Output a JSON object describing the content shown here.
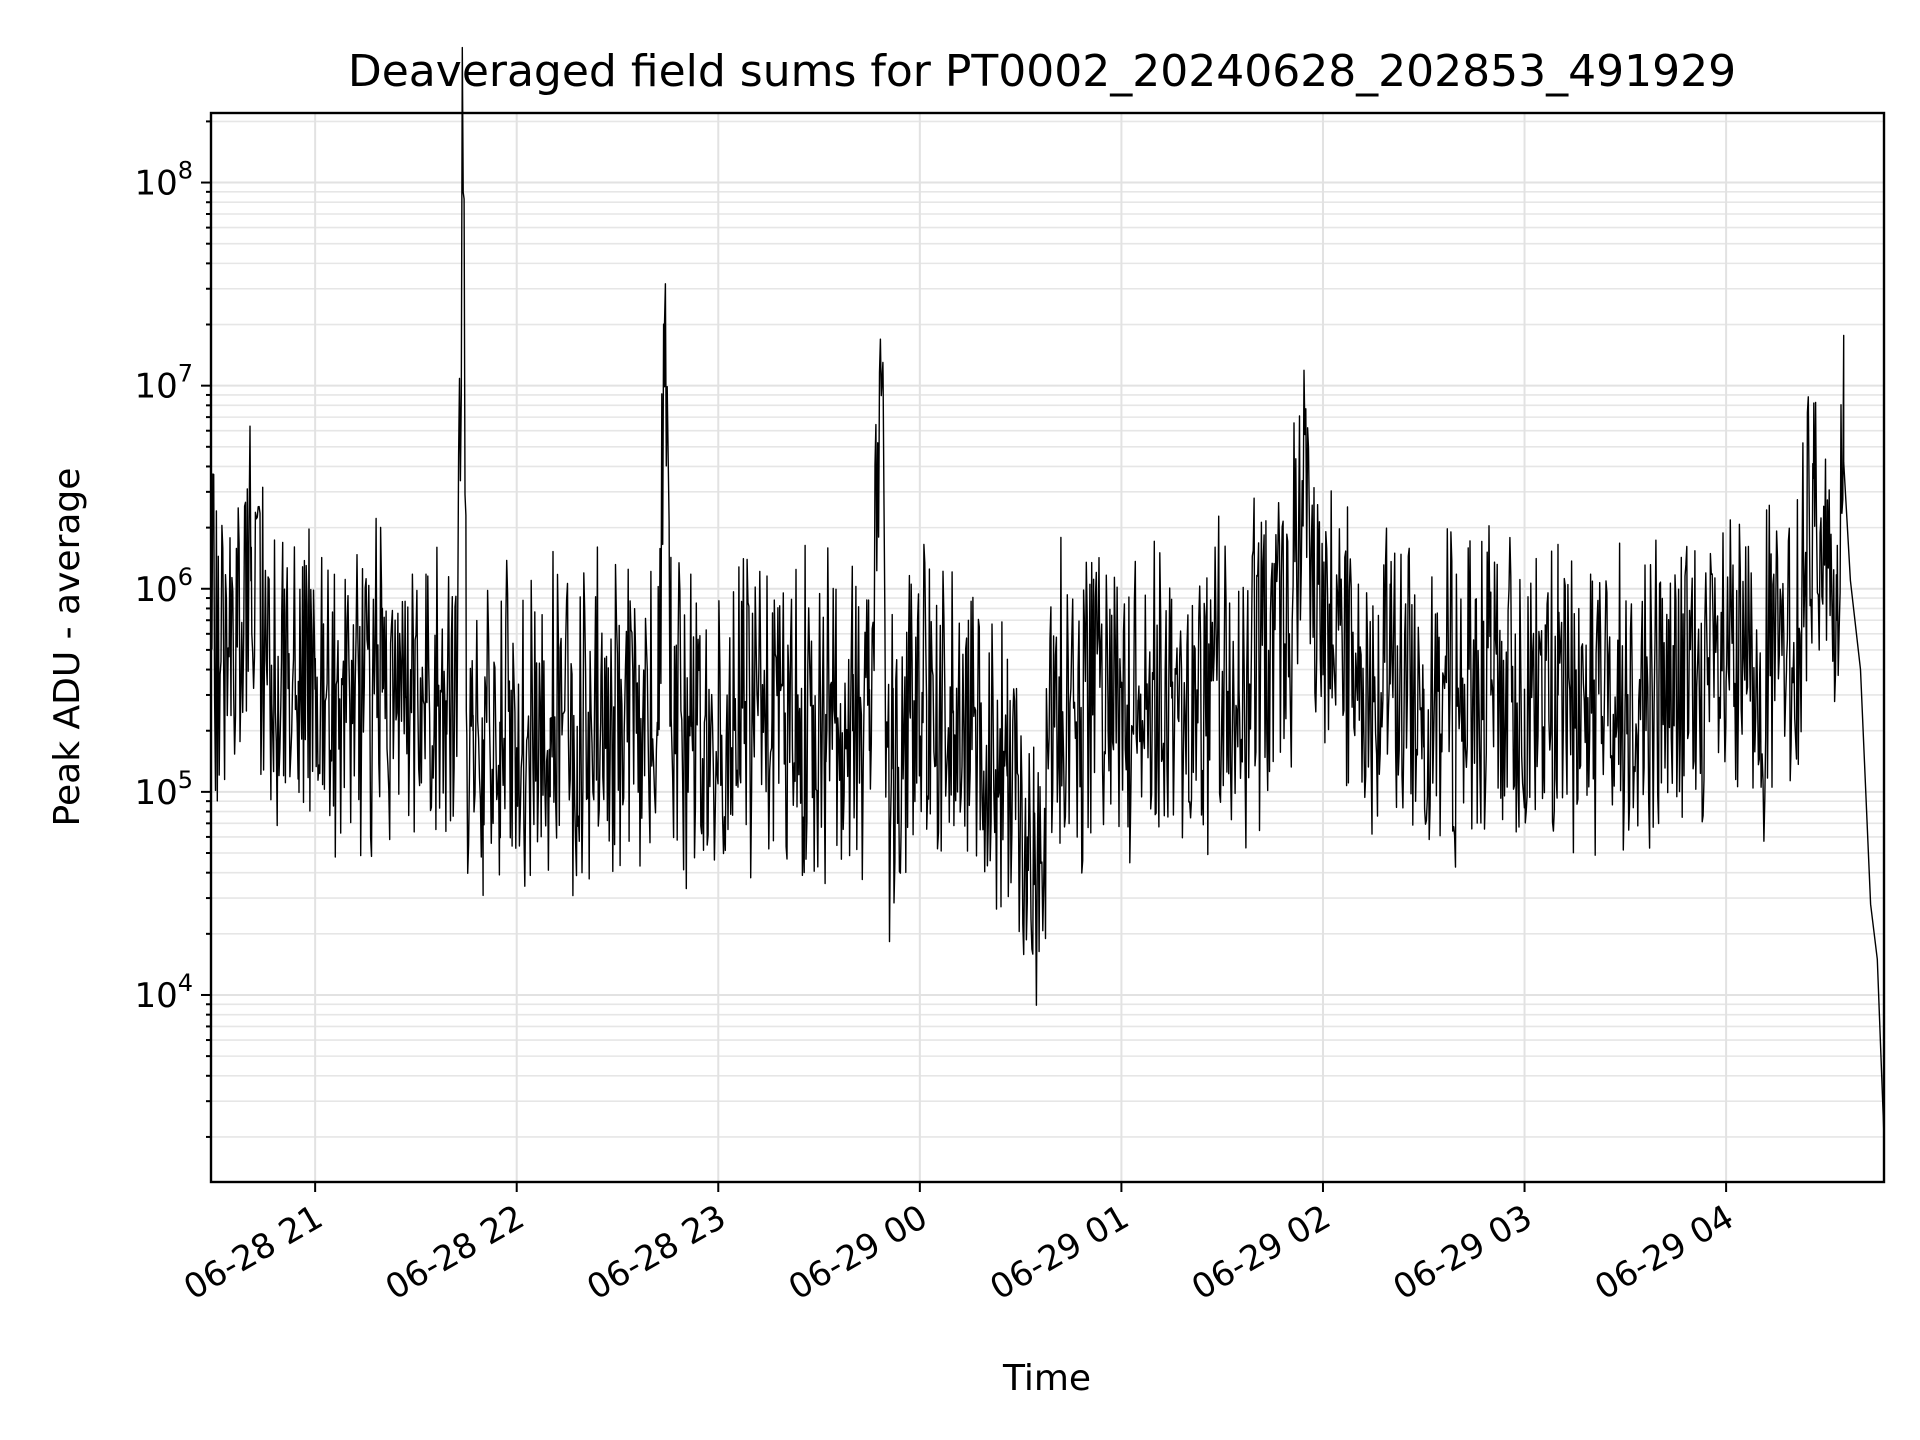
{
  "chart_data": {
    "type": "line",
    "title": "Deaveraged field sums for PT0002_20240628_202853_491929",
    "xlabel": "Time",
    "ylabel": "Peak ADU - average",
    "y_scale": "log",
    "ylim": [
      1200,
      220000000
    ],
    "xlim": [
      "2024-06-28T20:29",
      "2024-06-29T04:47"
    ],
    "grid": true,
    "line_color": "#000000",
    "x_ticks": [
      {
        "value": "2024-06-28T21:00",
        "label": "06-28 21"
      },
      {
        "value": "2024-06-28T22:00",
        "label": "06-28 22"
      },
      {
        "value": "2024-06-28T23:00",
        "label": "06-28 23"
      },
      {
        "value": "2024-06-29T00:00",
        "label": "06-29 00"
      },
      {
        "value": "2024-06-29T01:00",
        "label": "06-29 01"
      },
      {
        "value": "2024-06-29T02:00",
        "label": "06-29 02"
      },
      {
        "value": "2024-06-29T03:00",
        "label": "06-29 03"
      },
      {
        "value": "2024-06-29T04:00",
        "label": "06-29 04"
      }
    ],
    "y_ticks": [
      {
        "value": 10000,
        "base": "10",
        "exp": "4"
      },
      {
        "value": 100000,
        "base": "10",
        "exp": "5"
      },
      {
        "value": 1000000,
        "base": "10",
        "exp": "6"
      },
      {
        "value": 10000000,
        "base": "10",
        "exp": "7"
      },
      {
        "value": 100000000,
        "base": "10",
        "exp": "8"
      }
    ],
    "series": [
      {
        "x": [
          "2024-06-28T20:29",
          "2024-06-28T20:35",
          "2024-06-28T20:41",
          "2024-06-28T20:47",
          "2024-06-28T20:50",
          "2024-06-28T20:52",
          "2024-06-28T20:55",
          "2024-06-28T21:00",
          "2024-06-28T21:05",
          "2024-06-28T21:13",
          "2024-06-28T21:20",
          "2024-06-28T21:27",
          "2024-06-28T21:33",
          "2024-06-28T21:39",
          "2024-06-28T21:42",
          "2024-06-28T21:44",
          "2024-06-28T21:45",
          "2024-06-28T21:47",
          "2024-06-28T21:50",
          "2024-06-28T21:55",
          "2024-06-28T22:02",
          "2024-06-28T22:10",
          "2024-06-28T22:18",
          "2024-06-28T22:25",
          "2024-06-28T22:32",
          "2024-06-28T22:38",
          "2024-06-28T22:42",
          "2024-06-28T22:44",
          "2024-06-28T22:46",
          "2024-06-28T22:52",
          "2024-06-28T23:00",
          "2024-06-28T23:08",
          "2024-06-28T23:16",
          "2024-06-28T23:24",
          "2024-06-28T23:32",
          "2024-06-28T23:40",
          "2024-06-28T23:45",
          "2024-06-28T23:49",
          "2024-06-28T23:50",
          "2024-06-28T23:52",
          "2024-06-28T23:57",
          "2024-06-29T00:02",
          "2024-06-29T00:10",
          "2024-06-29T00:18",
          "2024-06-29T00:26",
          "2024-06-29T00:32",
          "2024-06-29T00:34",
          "2024-06-29T00:40",
          "2024-06-29T00:48",
          "2024-06-29T00:56",
          "2024-06-29T01:05",
          "2024-06-29T01:15",
          "2024-06-29T01:25",
          "2024-06-29T01:35",
          "2024-06-29T01:43",
          "2024-06-29T01:50",
          "2024-06-29T01:54",
          "2024-06-29T02:00",
          "2024-06-29T02:10",
          "2024-06-29T02:20",
          "2024-06-29T02:30",
          "2024-06-29T02:40",
          "2024-06-29T02:50",
          "2024-06-29T03:00",
          "2024-06-29T03:10",
          "2024-06-29T03:20",
          "2024-06-29T03:30",
          "2024-06-29T03:40",
          "2024-06-29T03:50",
          "2024-06-29T04:00",
          "2024-06-29T04:10",
          "2024-06-29T04:18",
          "2024-06-29T04:22",
          "2024-06-29T04:26",
          "2024-06-29T04:33",
          "2024-06-29T04:35",
          "2024-06-29T04:37",
          "2024-06-29T04:40",
          "2024-06-29T04:43",
          "2024-06-29T04:45",
          "2024-06-29T04:47"
        ],
        "y": [
          600000,
          550000,
          1600000,
          420000,
          450000,
          380000,
          350000,
          320000,
          300000,
          330000,
          310000,
          290000,
          300000,
          280000,
          320000,
          130000000,
          250000,
          200000,
          180000,
          220000,
          200000,
          230000,
          210000,
          220000,
          200000,
          180000,
          190000,
          20000000,
          230000,
          210000,
          220000,
          250000,
          230000,
          220000,
          240000,
          200000,
          160000,
          13000000,
          150000,
          130000,
          250000,
          280000,
          250000,
          180000,
          120000,
          60000,
          35000,
          240000,
          260000,
          270000,
          280000,
          290000,
          300000,
          320000,
          480000,
          600000,
          3000000,
          520000,
          380000,
          340000,
          320000,
          310000,
          300000,
          320000,
          300000,
          290000,
          310000,
          320000,
          330000,
          350000,
          380000,
          450000,
          600000,
          3500000,
          700000,
          4200000,
          1100000,
          400000,
          28000,
          15000,
          2000
        ]
      }
    ]
  }
}
